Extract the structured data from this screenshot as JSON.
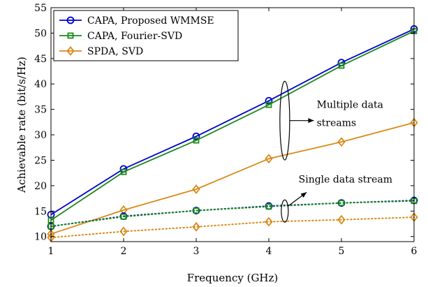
{
  "chart_data": {
    "type": "line",
    "xlabel": "Frequency (GHz)",
    "ylabel": "Achievable rate (bit/s/Hz)",
    "xlim": [
      1,
      6
    ],
    "ylim": [
      9,
      55
    ],
    "x_ticks": [
      1,
      2,
      3,
      4,
      5,
      6
    ],
    "y_ticks": [
      10,
      15,
      20,
      25,
      30,
      35,
      40,
      45,
      50,
      55
    ],
    "grid": false,
    "legend_position": "top-left",
    "series": [
      {
        "name": "CAPA, Proposed WMMSE",
        "group": "multiple",
        "color": "#0000cc",
        "marker": "circle",
        "line": "solid",
        "x": [
          1,
          2,
          3,
          4,
          5,
          6
        ],
        "values": [
          14.3,
          23.3,
          29.7,
          36.7,
          44.2,
          50.8
        ]
      },
      {
        "name": "CAPA, Fourier-SVD",
        "group": "multiple",
        "color": "#1a8a1a",
        "marker": "square",
        "line": "solid",
        "x": [
          1,
          2,
          3,
          4,
          5,
          6
        ],
        "values": [
          13.2,
          22.7,
          28.9,
          35.9,
          43.6,
          50.4
        ]
      },
      {
        "name": "SPDA, SVD",
        "group": "multiple",
        "color": "#d98a18",
        "marker": "diamond",
        "line": "solid",
        "x": [
          1,
          2,
          3,
          4,
          5,
          6
        ],
        "values": [
          10.5,
          15.2,
          19.3,
          25.3,
          28.6,
          32.4
        ]
      },
      {
        "name": "",
        "group": "single",
        "color": "#0000cc",
        "marker": "circle",
        "line": "dotted",
        "x": [
          1,
          2,
          3,
          4,
          5,
          6
        ],
        "values": [
          12.0,
          14.0,
          15.1,
          16.0,
          16.6,
          17.1
        ]
      },
      {
        "name": "",
        "group": "single",
        "color": "#1a8a1a",
        "marker": "square",
        "line": "dotted",
        "x": [
          1,
          2,
          3,
          4,
          5,
          6
        ],
        "values": [
          12.0,
          13.9,
          15.1,
          15.9,
          16.6,
          17.0
        ]
      },
      {
        "name": "",
        "group": "single",
        "color": "#d98a18",
        "marker": "diamond",
        "line": "dotted",
        "x": [
          1,
          2,
          3,
          4,
          5,
          6
        ],
        "values": [
          9.8,
          11.0,
          11.9,
          12.9,
          13.3,
          13.8
        ]
      }
    ],
    "annotations": [
      {
        "lines": [
          "Multiple data",
          "streams"
        ]
      },
      {
        "lines": [
          "Single data stream"
        ]
      }
    ]
  }
}
